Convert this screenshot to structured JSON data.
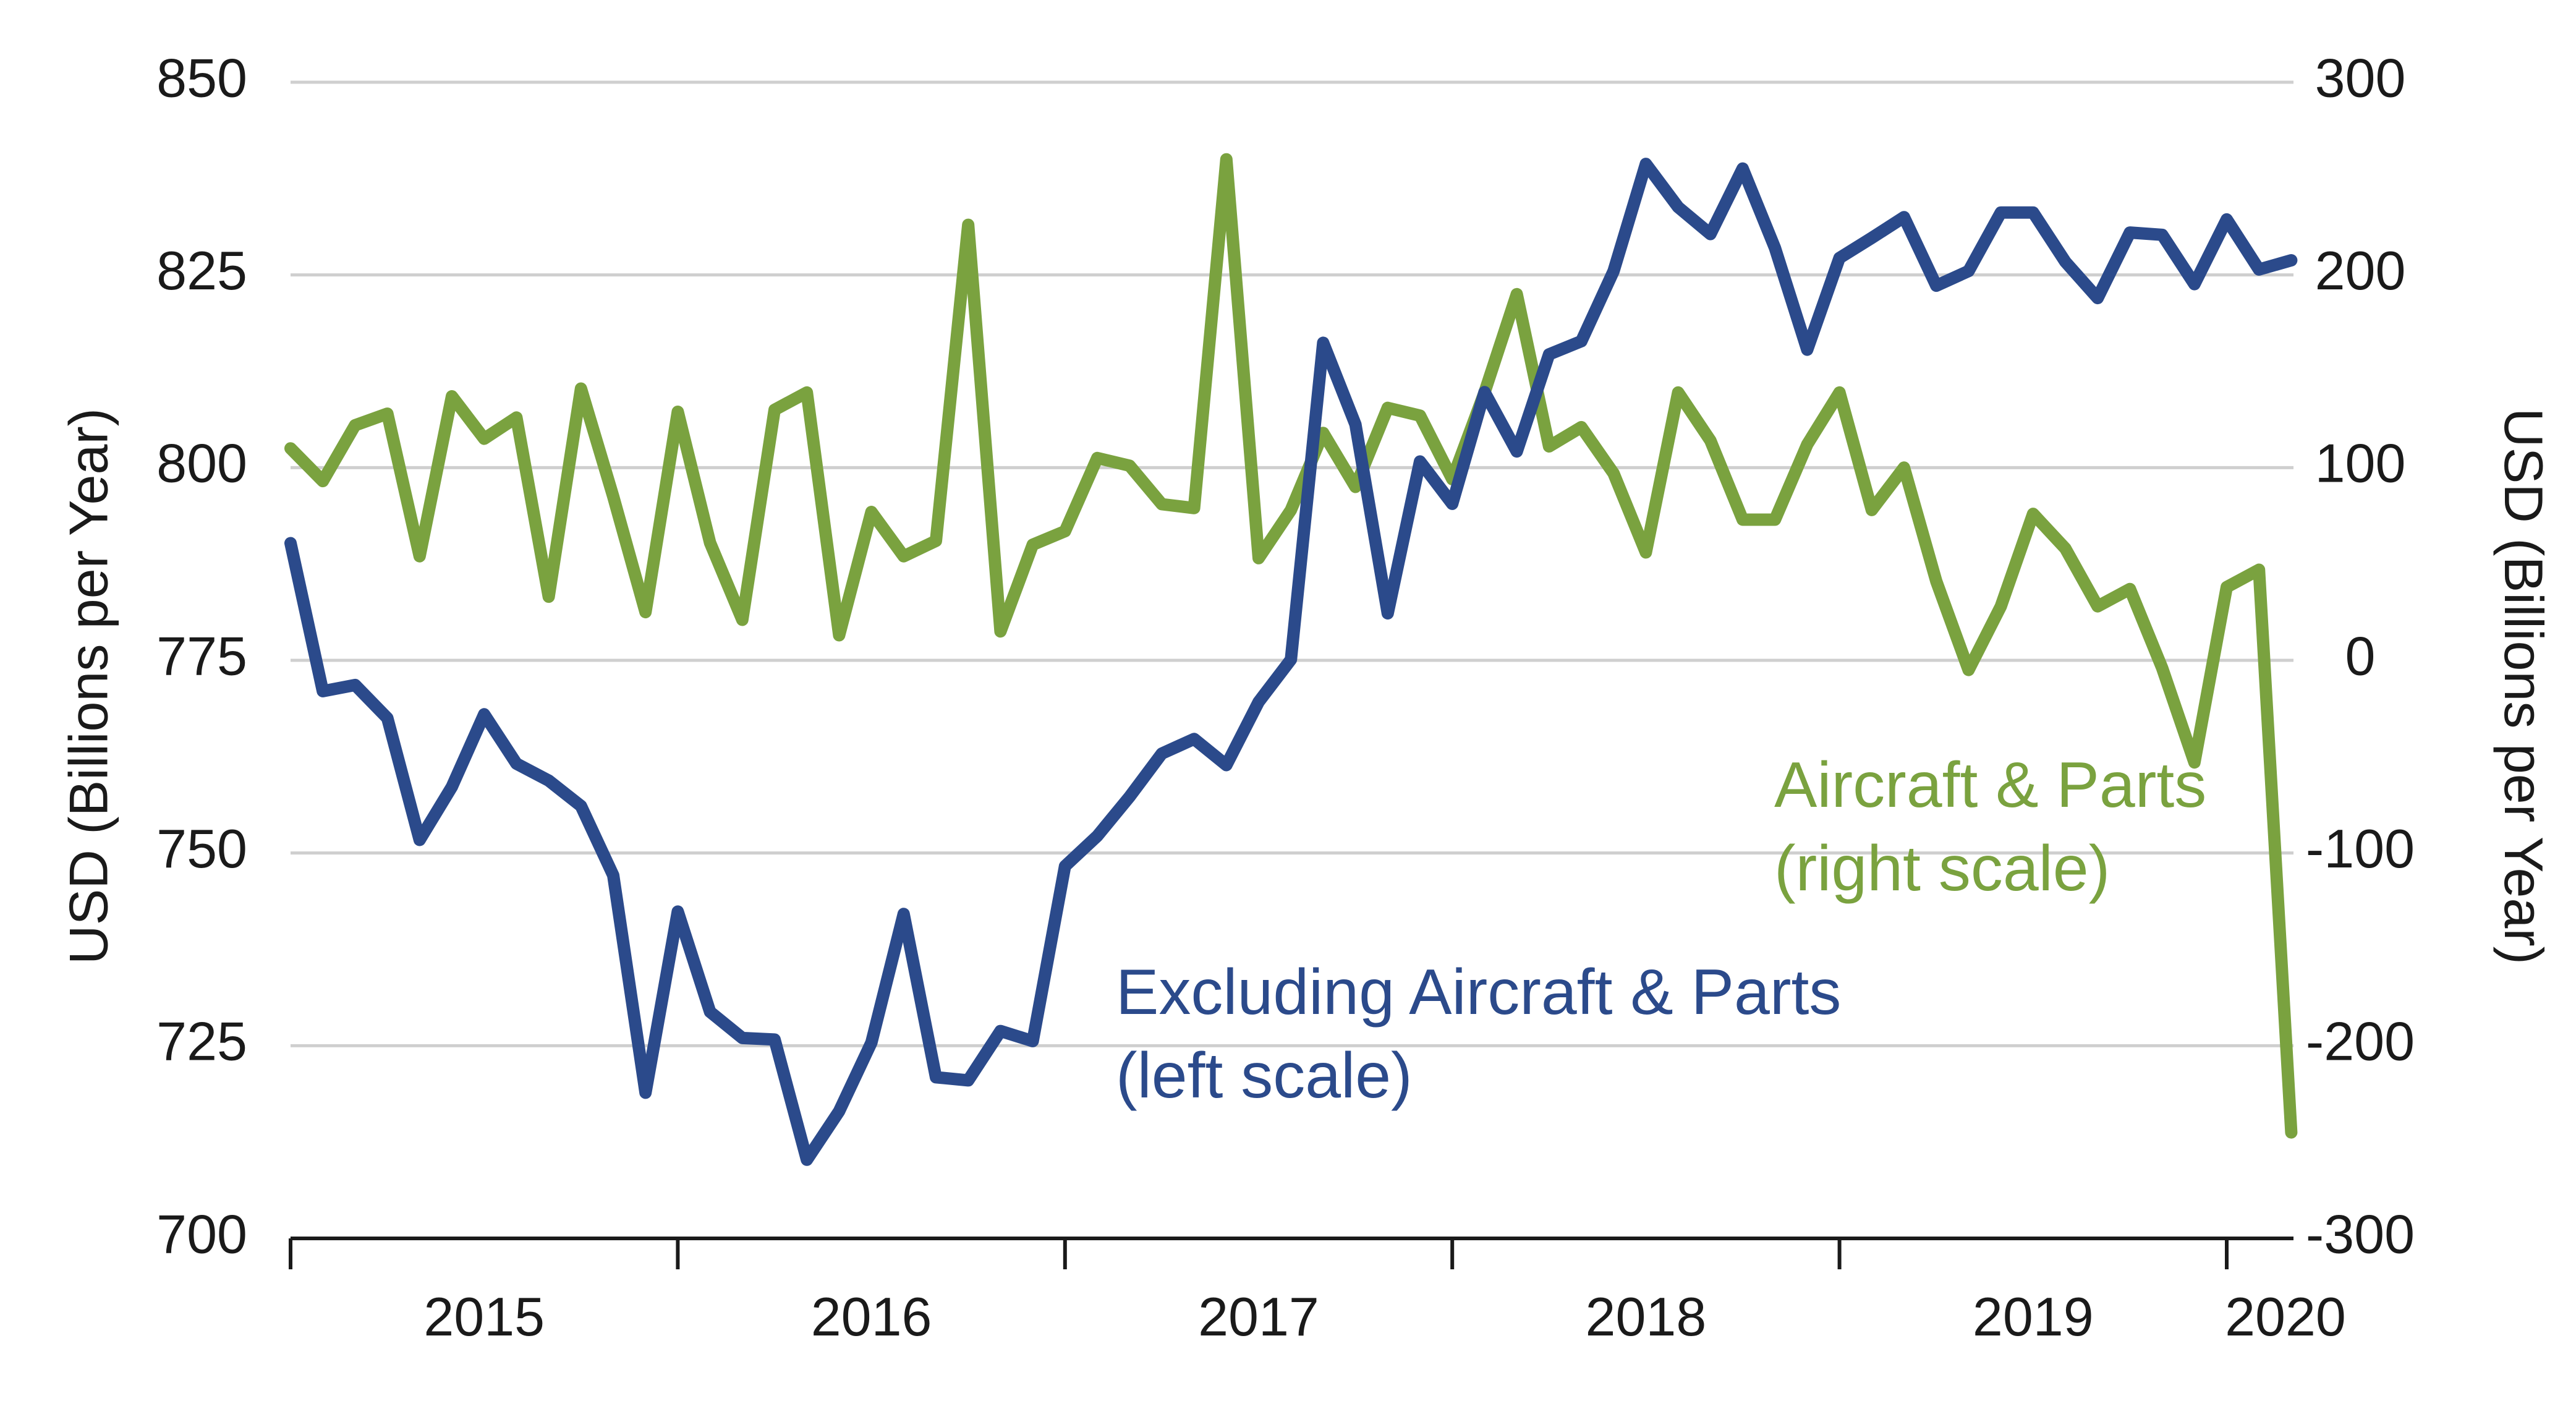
{
  "chart_data": {
    "type": "line",
    "title": "",
    "xlabel": "",
    "ylabel": "USD (Billions per Year)",
    "y2label": "USD (Billions per Year)",
    "ylim": [
      700,
      850
    ],
    "y2lim": [
      -300,
      300
    ],
    "yticks": [
      700,
      725,
      750,
      775,
      800,
      825,
      850
    ],
    "y2ticks": [
      -300,
      -200,
      -100,
      0,
      100,
      200,
      300
    ],
    "year_labels": [
      "2015",
      "2016",
      "2017",
      "2018",
      "2019",
      "2020"
    ],
    "grid": true,
    "colors": {
      "left": "#2b4a8b",
      "right": "#7aa23f",
      "grid": "#cfcfcf",
      "axis": "#1a1a1a"
    },
    "series": [
      {
        "name": "Excluding Aircraft & Parts (left scale)",
        "axis": "left",
        "start": "2015-01",
        "values": [
          790.2,
          771.0,
          771.8,
          767.5,
          751.7,
          758.6,
          768.0,
          761.6,
          759.4,
          756.1,
          747.1,
          718.9,
          742.4,
          729.4,
          726.0,
          725.8,
          710.2,
          716.5,
          725.4,
          742.1,
          720.9,
          720.5,
          726.9,
          725.6,
          748.3,
          752.2,
          757.3,
          762.9,
          764.8,
          761.4,
          769.6,
          775.1,
          816.2,
          805.6,
          781.1,
          800.8,
          795.3,
          809.8,
          802.1,
          814.7,
          816.4,
          825.5,
          839.4,
          833.8,
          830.3,
          838.8,
          828.5,
          815.3,
          827.2,
          829.8,
          832.5,
          823.6,
          825.5,
          833.1,
          833.1,
          826.7,
          822.0,
          830.5,
          830.2,
          823.8,
          832.2,
          825.7,
          826.9
        ]
      },
      {
        "name": "Aircraft & Parts (right scale)",
        "axis": "right",
        "start": "2015-01",
        "values": [
          110,
          93,
          122,
          128,
          54,
          137,
          115,
          126,
          33,
          141,
          85,
          25,
          129,
          61,
          21,
          130,
          139,
          13,
          77,
          54,
          62,
          226,
          15,
          60,
          67,
          105,
          101,
          81,
          79,
          260,
          53,
          78,
          118,
          90,
          131,
          127,
          94,
          139,
          190,
          111,
          121,
          97,
          56,
          139,
          114,
          73,
          73,
          112,
          139,
          78,
          100,
          41,
          -5,
          28,
          76,
          58,
          28,
          37,
          -4,
          -53,
          38,
          47,
          -245
        ]
      }
    ],
    "annotations": [
      {
        "series": 0,
        "line1": "Excluding Aircraft & Parts",
        "line2": "(left scale)"
      },
      {
        "series": 1,
        "line1": "Aircraft & Parts",
        "line2": "(right scale)"
      }
    ]
  }
}
